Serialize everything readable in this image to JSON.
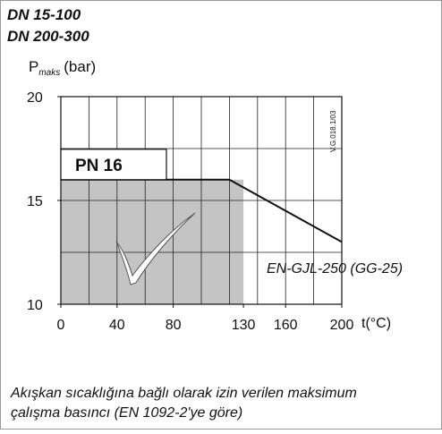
{
  "chart_data": {
    "type": "line",
    "title": [
      "DN 15-100",
      "DN 200-300"
    ],
    "ylabel": {
      "main": "P",
      "sub": "maks",
      "unit": "(bar)"
    },
    "xlabel": "t(°C)",
    "xlim": [
      0,
      200
    ],
    "xticks": [
      0,
      40,
      80,
      130,
      160,
      200
    ],
    "ylim": [
      10,
      20
    ],
    "yticks": [
      10,
      15,
      20
    ],
    "grid": true,
    "xgrid_step": 20,
    "ygrid_step": 2.5,
    "series": [
      {
        "name": "EN-GJL-250 (GG-25)",
        "color": "#111111",
        "x": [
          0,
          120,
          200
        ],
        "values": [
          16,
          16,
          13
        ]
      }
    ],
    "shaded_region": {
      "x": [
        0,
        130
      ],
      "y": [
        10,
        16
      ],
      "color": "#c4c4c4"
    },
    "annotations": {
      "pressure_class": "PN 16",
      "code": "V.G.018.1/03"
    },
    "caption": [
      "Akışkan sıcaklığına bağlı olarak izin verilen maksimum",
      "çalışma basıncı (EN 1092-2'ye göre)"
    ]
  }
}
